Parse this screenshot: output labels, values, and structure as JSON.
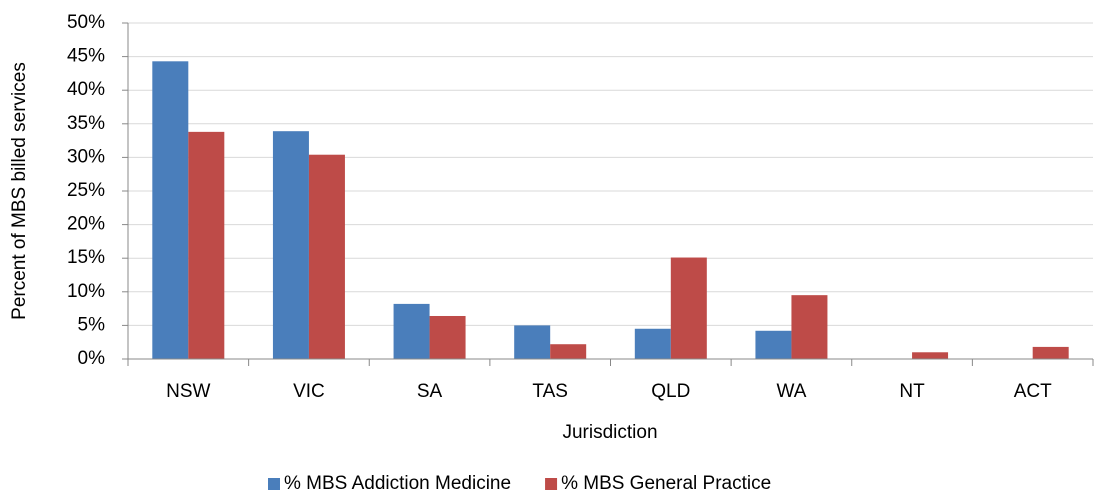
{
  "chart_data": {
    "type": "bar",
    "y_label": "Percent of MBS billed services",
    "x_label": "Jurisdiction",
    "categories": [
      "NSW",
      "VIC",
      "SA",
      "TAS",
      "QLD",
      "WA",
      "NT",
      "ACT"
    ],
    "series": [
      {
        "name": "% MBS Addiction Medicine",
        "color": "#4a7ebb",
        "values": [
          44.3,
          33.9,
          8.2,
          5.0,
          4.5,
          4.2,
          0,
          0
        ]
      },
      {
        "name": "% MBS General Practice",
        "color": "#be4b48",
        "values": [
          33.8,
          30.4,
          6.4,
          2.2,
          15.1,
          9.5,
          1.0,
          1.8
        ]
      }
    ],
    "ylim": [
      0,
      50
    ],
    "yticks": [
      {
        "value": 0,
        "label": "0%"
      },
      {
        "value": 5,
        "label": "5%"
      },
      {
        "value": 10,
        "label": "10%"
      },
      {
        "value": 15,
        "label": "15%"
      },
      {
        "value": 20,
        "label": "20%"
      },
      {
        "value": 25,
        "label": "25%"
      },
      {
        "value": 30,
        "label": "30%"
      },
      {
        "value": 35,
        "label": "35%"
      },
      {
        "value": 40,
        "label": "40%"
      },
      {
        "value": 45,
        "label": "45%"
      },
      {
        "value": 50,
        "label": "50%"
      }
    ],
    "grid": true,
    "legend": "bottom"
  }
}
